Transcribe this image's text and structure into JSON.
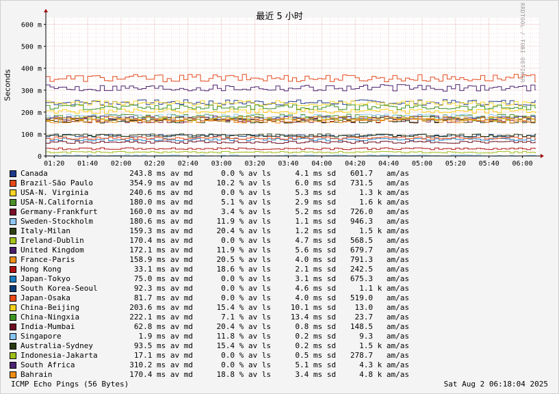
{
  "chart_data": {
    "type": "line",
    "title": "最近 5 小时",
    "ylabel": "Seconds",
    "watermark": "RRDTOOL / TOBI OETIKER",
    "ylim": [
      0,
      630
    ],
    "y_ticks": [
      0,
      100,
      200,
      300,
      400,
      500,
      600
    ],
    "y_tick_labels": [
      "0",
      "100 m",
      "200 m",
      "300 m",
      "400 m",
      "500 m",
      "600 m"
    ],
    "x_tick_labels": [
      "01:20",
      "01:40",
      "02:00",
      "02:20",
      "02:40",
      "03:00",
      "03:20",
      "03:40",
      "04:00",
      "04:20",
      "04:40",
      "05:00",
      "05:20",
      "05:40",
      "06:00"
    ],
    "xlim_minutes": [
      75,
      370
    ],
    "grid": true,
    "series": [
      {
        "name": "Canada",
        "color": "#1f3a8a",
        "avg": 243.8,
        "avg_text": "243.8 ms av md",
        "loss_text": "0.0 % av ls",
        "sd_text": "4.1 ms sd",
        "am_text": "601.7   am/as"
      },
      {
        "name": "Brazil-São Paulo",
        "color": "#e34a1c",
        "avg": 354.9,
        "avg_text": "354.9 ms av md",
        "loss_text": "10.2 % av ls",
        "sd_text": "6.0 ms sd",
        "am_text": "731.5   am/as"
      },
      {
        "name": "USA-N. Virginia",
        "color": "#f5d327",
        "avg": 240.6,
        "avg_text": "240.6 ms av md",
        "loss_text": "0.0 % av ls",
        "sd_text": "5.3 ms sd",
        "am_text": "1.3 k am/as"
      },
      {
        "name": "USA-N.California",
        "color": "#4a8f2a",
        "avg": 180.0,
        "avg_text": "180.0 ms av md",
        "loss_text": "5.1 % av ls",
        "sd_text": "2.9 ms sd",
        "am_text": "1.6 k am/as"
      },
      {
        "name": "Germany-Frankfurt",
        "color": "#7a0f2a",
        "avg": 160.0,
        "avg_text": "160.0 ms av md",
        "loss_text": "3.4 % av ls",
        "sd_text": "5.2 ms sd",
        "am_text": "726.0   am/as"
      },
      {
        "name": "Sweden-Stockholm",
        "color": "#8fc7f2",
        "avg": 180.6,
        "avg_text": "180.6 ms av md",
        "loss_text": "11.9 % av ls",
        "sd_text": "1.1 ms sd",
        "am_text": "946.3   am/as"
      },
      {
        "name": "Italy-Milan",
        "color": "#2e3f12",
        "avg": 159.3,
        "avg_text": "159.3 ms av md",
        "loss_text": "20.4 % av ls",
        "sd_text": "1.2 ms sd",
        "am_text": "1.5 k am/as"
      },
      {
        "name": "Ireland-Dublin",
        "color": "#a3c21c",
        "avg": 170.4,
        "avg_text": "170.4 ms av md",
        "loss_text": "0.0 % av ls",
        "sd_text": "4.7 ms sd",
        "am_text": "568.5   am/as"
      },
      {
        "name": "United Kingdom",
        "color": "#4b1f6b",
        "avg": 172.1,
        "avg_text": "172.1 ms av md",
        "loss_text": "11.9 % av ls",
        "sd_text": "5.6 ms sd",
        "am_text": "679.7   am/as"
      },
      {
        "name": "France-Paris",
        "color": "#f0901c",
        "avg": 158.9,
        "avg_text": "158.9 ms av md",
        "loss_text": "20.5 % av ls",
        "sd_text": "4.0 ms sd",
        "am_text": "791.3   am/as"
      },
      {
        "name": "Hong Kong",
        "color": "#b01313",
        "avg": 33.1,
        "avg_text": "33.1 ms av md",
        "loss_text": "18.6 % av ls",
        "sd_text": "2.1 ms sd",
        "am_text": "242.5   am/as"
      },
      {
        "name": "Japan-Tokyo",
        "color": "#1c7fc0",
        "avg": 75.0,
        "avg_text": "75.0 ms av md",
        "loss_text": "0.0 % av ls",
        "sd_text": "3.1 ms sd",
        "am_text": "675.3   am/as"
      },
      {
        "name": "South Korea-Seoul",
        "color": "#0c3d78",
        "avg": 92.3,
        "avg_text": "92.3 ms av md",
        "loss_text": "0.0 % av ls",
        "sd_text": "4.6 ms sd",
        "am_text": "1.1 k am/as"
      },
      {
        "name": "Japan-Osaka",
        "color": "#f04a18",
        "avg": 81.7,
        "avg_text": "81.7 ms av md",
        "loss_text": "0.0 % av ls",
        "sd_text": "4.0 ms sd",
        "am_text": "519.0   am/as"
      },
      {
        "name": "China-Beijing",
        "color": "#f7cf1c",
        "avg": 203.6,
        "avg_text": "203.6 ms av md",
        "loss_text": "15.4 % av ls",
        "sd_text": "10.1 ms sd",
        "am_text": "13.0   am/as"
      },
      {
        "name": "China-Ningxia",
        "color": "#3f9424",
        "avg": 222.1,
        "avg_text": "222.1 ms av md",
        "loss_text": "7.1 % av ls",
        "sd_text": "13.4 ms sd",
        "am_text": "23.7   am/as"
      },
      {
        "name": "India-Mumbai",
        "color": "#6e0e22",
        "avg": 62.8,
        "avg_text": "62.8 ms av md",
        "loss_text": "20.4 % av ls",
        "sd_text": "0.8 ms sd",
        "am_text": "148.5   am/as"
      },
      {
        "name": "Singapore",
        "color": "#86c4f0",
        "avg": 1.9,
        "avg_text": "1.9 ms av md",
        "loss_text": "11.8 % av ls",
        "sd_text": "0.2 ms sd",
        "am_text": "9.3   am/as"
      },
      {
        "name": "Australia-Sydney",
        "color": "#2a3a10",
        "avg": 93.5,
        "avg_text": "93.5 ms av md",
        "loss_text": "15.4 % av ls",
        "sd_text": "0.2 ms sd",
        "am_text": "1.5 k am/as"
      },
      {
        "name": "Indonesia-Jakarta",
        "color": "#9fbf1a",
        "avg": 17.1,
        "avg_text": "17.1 ms av md",
        "loss_text": "0.0 % av ls",
        "sd_text": "0.5 ms sd",
        "am_text": "278.7   am/as"
      },
      {
        "name": "South Africa",
        "color": "#4a2470",
        "avg": 310.2,
        "avg_text": "310.2 ms av md",
        "loss_text": "0.0 % av ls",
        "sd_text": "5.1 ms sd",
        "am_text": "4.3 k am/as"
      },
      {
        "name": "Bahrain",
        "color": "#f08c16",
        "avg": 170.4,
        "avg_text": "170.4 ms av md",
        "loss_text": "18.8 % av ls",
        "sd_text": "3.4 ms sd",
        "am_text": "4.8 k am/as"
      }
    ]
  },
  "footer": {
    "left": "ICMP Echo Pings (56 Bytes)",
    "right": "Sat Aug  2 06:18:04 2025"
  }
}
